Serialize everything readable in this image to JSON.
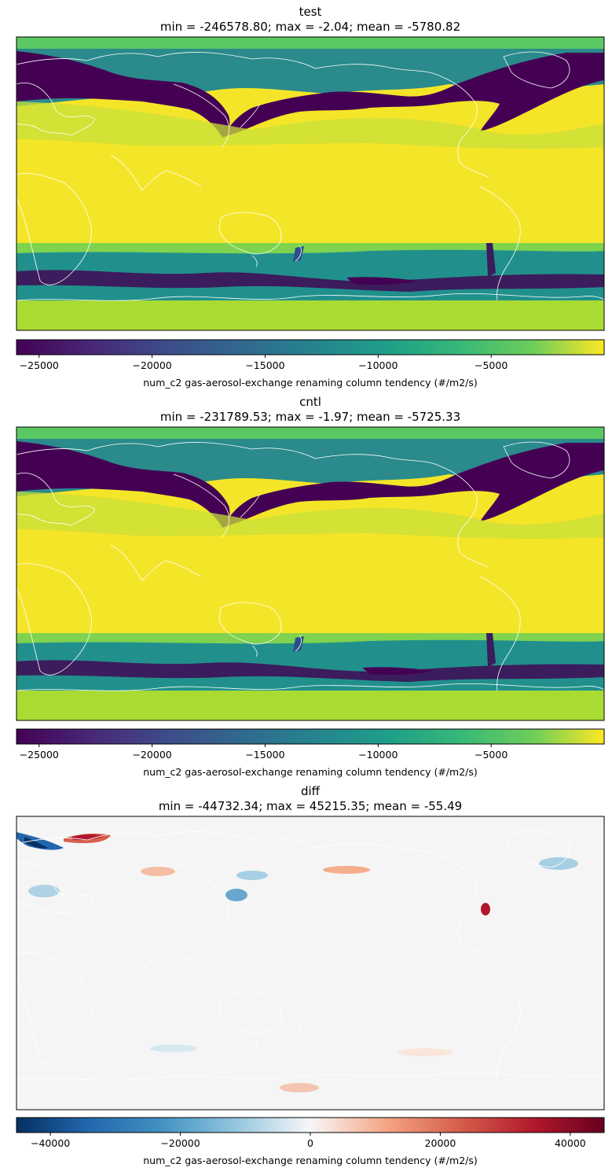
{
  "chart_data": [
    {
      "type": "heatmap",
      "name": "test",
      "title": "test",
      "subtitle": "min = -246578.80; max = -2.04; mean = -5780.82",
      "stats": {
        "min": -246578.8,
        "max": -2.04,
        "mean": -5780.82
      },
      "colormap": "viridis",
      "colorbar": {
        "label": "num_c2 gas-aerosol-exchange renaming column tendency (#/m2/s)",
        "range": [
          -26000,
          0
        ],
        "ticks": [
          -25000,
          -20000,
          -15000,
          -10000,
          -5000
        ],
        "tick_labels": [
          "−25000",
          "−20000",
          "−15000",
          "−10000",
          "−5000"
        ]
      }
    },
    {
      "type": "heatmap",
      "name": "cntl",
      "title": "cntl",
      "subtitle": "min = -231789.53; max = -1.97; mean = -5725.33",
      "stats": {
        "min": -231789.53,
        "max": -1.97,
        "mean": -5725.33
      },
      "colormap": "viridis",
      "colorbar": {
        "label": "num_c2 gas-aerosol-exchange renaming column tendency (#/m2/s)",
        "range": [
          -26000,
          0
        ],
        "ticks": [
          -25000,
          -20000,
          -15000,
          -10000,
          -5000
        ],
        "tick_labels": [
          "−25000",
          "−20000",
          "−15000",
          "−10000",
          "−5000"
        ]
      }
    },
    {
      "type": "heatmap",
      "name": "diff",
      "title": "diff",
      "subtitle": "min = -44732.34; max = 45215.35; mean = -55.49",
      "stats": {
        "min": -44732.34,
        "max": 45215.35,
        "mean": -55.49
      },
      "colormap": "RdBu_r",
      "colorbar": {
        "label": "num_c2 gas-aerosol-exchange renaming column tendency (#/m2/s)",
        "range": [
          -45215.35,
          45215.35
        ],
        "ticks": [
          -40000,
          -20000,
          0,
          20000,
          40000
        ],
        "tick_labels": [
          "−40000",
          "−20000",
          "0",
          "20000",
          "40000"
        ]
      }
    }
  ]
}
